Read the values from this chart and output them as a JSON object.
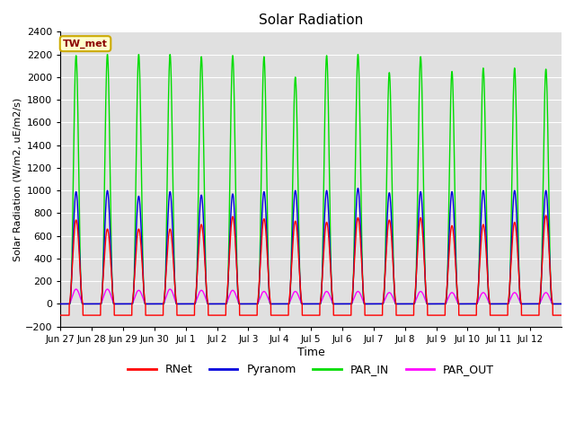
{
  "title": "Solar Radiation",
  "xlabel": "Time",
  "ylabel": "Solar Radiation (W/m2, uE/m2/s)",
  "ylim": [
    -200,
    2400
  ],
  "yticks": [
    -200,
    0,
    200,
    400,
    600,
    800,
    1000,
    1200,
    1400,
    1600,
    1800,
    2000,
    2200,
    2400
  ],
  "station_label": "TW_met",
  "bg_color": "#e0e0e0",
  "grid_color": "#ffffff",
  "colors": {
    "RNet": "#ff0000",
    "Pyranom": "#0000dd",
    "PAR_IN": "#00dd00",
    "PAR_OUT": "#ff00ff"
  },
  "line_width": 1.0,
  "num_days": 16,
  "xtick_labels": [
    "Jun 27",
    "Jun 28",
    "Jun 29",
    "Jun 30",
    "Jul 1",
    "Jul 2",
    "Jul 3",
    "Jul 4",
    "Jul 5",
    "Jul 6",
    "Jul 7",
    "Jul 8",
    "Jul 9",
    "Jul 10",
    "Jul 11",
    "Jul 12"
  ],
  "par_in_peaks": [
    2190,
    2200,
    2200,
    2200,
    2180,
    2190,
    2180,
    2000,
    2190,
    2200,
    2040,
    2180,
    2050,
    2080,
    2080,
    2070
  ],
  "pyranom_peaks": [
    990,
    1000,
    950,
    990,
    960,
    970,
    990,
    1000,
    1000,
    1020,
    980,
    990,
    990,
    1000,
    1000,
    1000
  ],
  "rnet_peaks": [
    740,
    660,
    660,
    660,
    700,
    770,
    750,
    730,
    720,
    760,
    740,
    760,
    690,
    700,
    720,
    780
  ],
  "par_out_peaks": [
    130,
    130,
    120,
    130,
    120,
    120,
    110,
    110,
    110,
    110,
    100,
    110,
    100,
    100,
    100,
    100
  ],
  "rnet_night": -100,
  "legend_labels": [
    "RNet",
    "Pyranom",
    "PAR_IN",
    "PAR_OUT"
  ]
}
